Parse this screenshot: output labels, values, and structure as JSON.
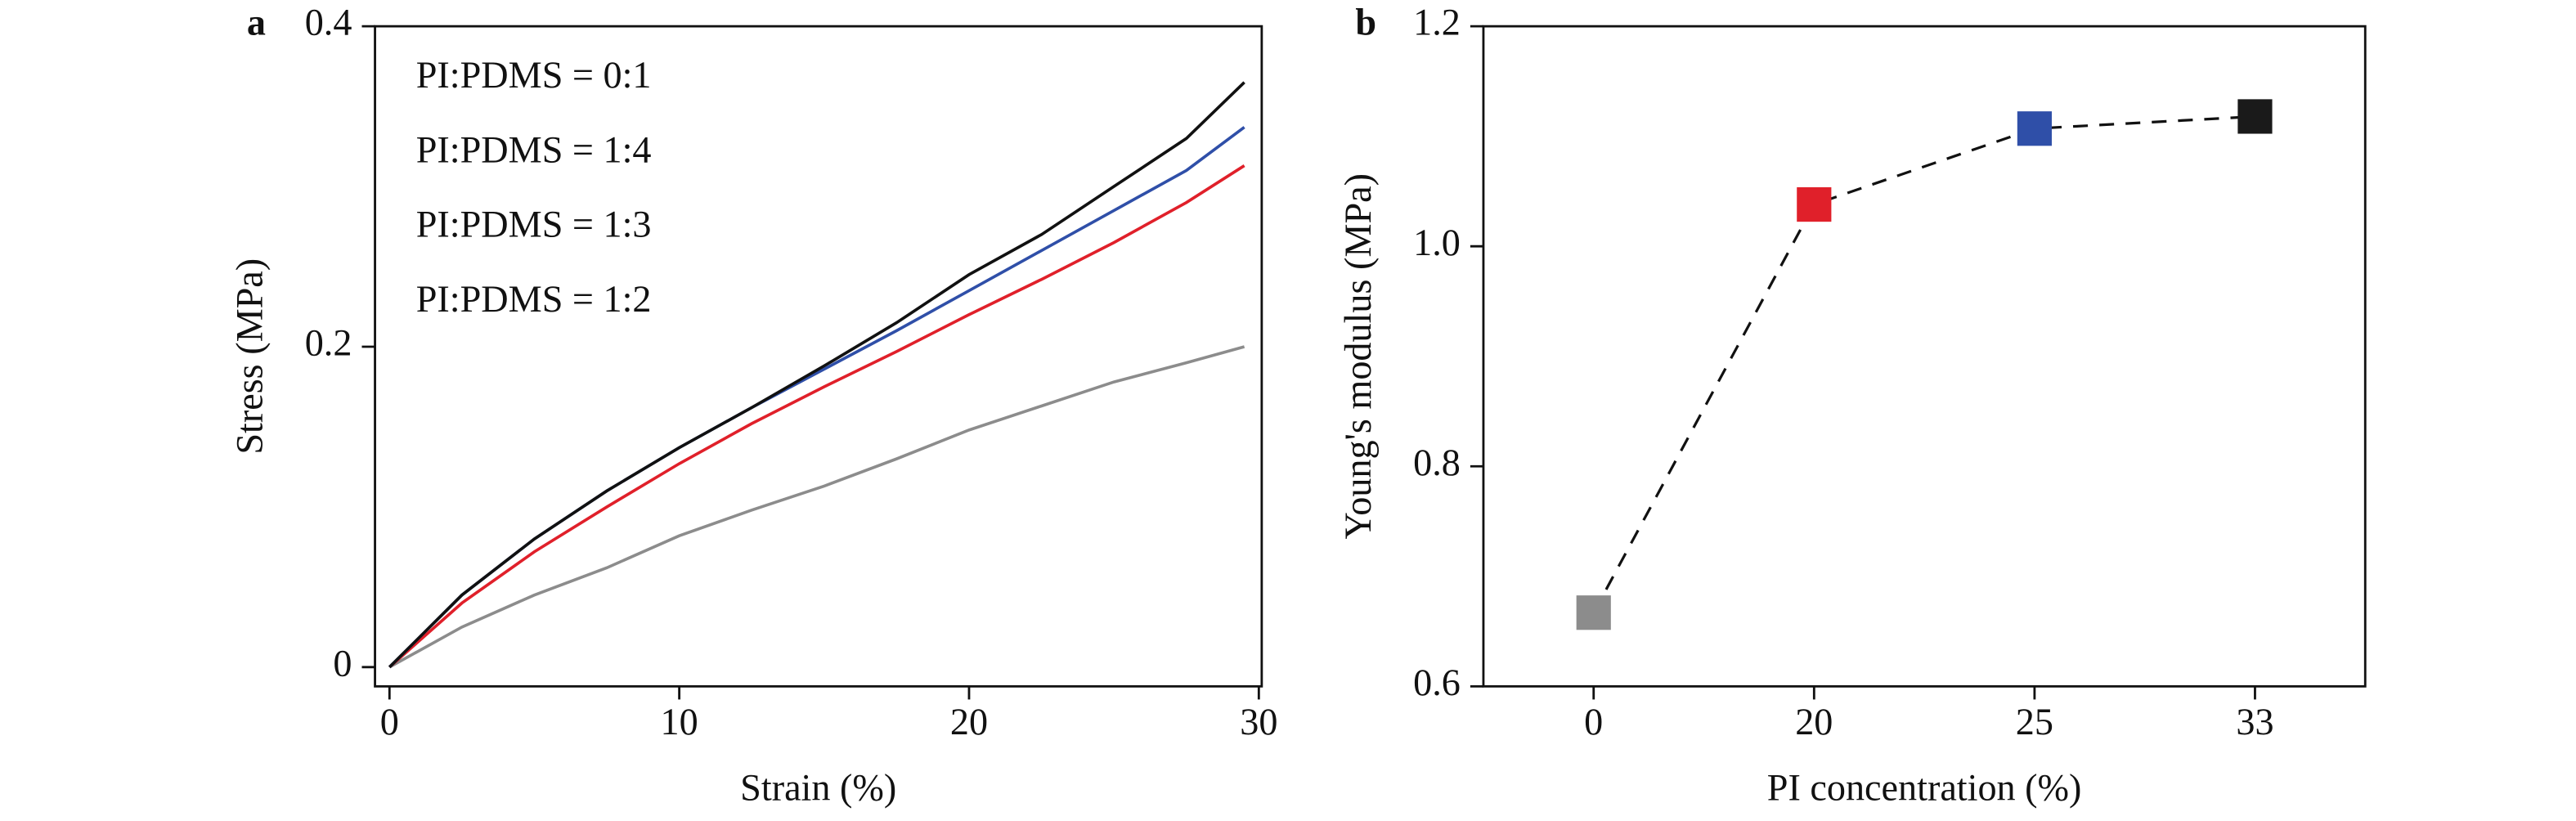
{
  "chart_data": [
    {
      "type": "line",
      "panel_label": "a",
      "xlabel": "Strain (%)",
      "ylabel": "Stress (MPa)",
      "x": [
        0,
        2.5,
        5,
        7.5,
        10,
        12.5,
        15,
        17.5,
        20,
        22.5,
        25,
        27.5,
        29.5
      ],
      "series": [
        {
          "name": "PI:PDMS = 0:1",
          "color": "#8c8c8c",
          "values": [
            0,
            0.025,
            0.045,
            0.062,
            0.082,
            0.098,
            0.113,
            0.13,
            0.148,
            0.163,
            0.178,
            0.19,
            0.2
          ]
        },
        {
          "name": "PI:PDMS = 1:4",
          "color": "#e0202a",
          "values": [
            0,
            0.04,
            0.072,
            0.1,
            0.127,
            0.152,
            0.175,
            0.197,
            0.22,
            0.242,
            0.265,
            0.29,
            0.313
          ]
        },
        {
          "name": "PI:PDMS = 1:3",
          "color": "#2f4fa8",
          "values": [
            0,
            0.045,
            0.08,
            0.11,
            0.137,
            0.162,
            0.186,
            0.21,
            0.235,
            0.26,
            0.285,
            0.31,
            0.337
          ]
        },
        {
          "name": "PI:PDMS = 1:2",
          "color": "#111111",
          "values": [
            0,
            0.045,
            0.08,
            0.11,
            0.137,
            0.162,
            0.188,
            0.215,
            0.245,
            0.27,
            0.3,
            0.33,
            0.365
          ]
        }
      ],
      "xlim": [
        -0.5,
        30.1
      ],
      "xticks": [
        0,
        10,
        20,
        30
      ],
      "ylim": [
        -0.012,
        0.4
      ],
      "yticks": [
        0,
        0.2,
        0.4
      ],
      "legend": "upper left"
    },
    {
      "type": "line",
      "panel_label": "b",
      "xlabel": "PI concentration (%)",
      "ylabel": "Young's modulus (MPa)",
      "categories": [
        "0",
        "20",
        "25",
        "33"
      ],
      "values": [
        0.667,
        1.038,
        1.107,
        1.118
      ],
      "colors": [
        "#8c8c8c",
        "#e0202a",
        "#2f4fa8",
        "#1a1a1a"
      ],
      "line_color": "#111111",
      "line_style": "dashed",
      "marker": "square",
      "ylim": [
        0.6,
        1.2
      ],
      "yticks": [
        0.6,
        0.8,
        {
          "value": 1,
          "label": "1.0"
        },
        1.2
      ]
    }
  ]
}
